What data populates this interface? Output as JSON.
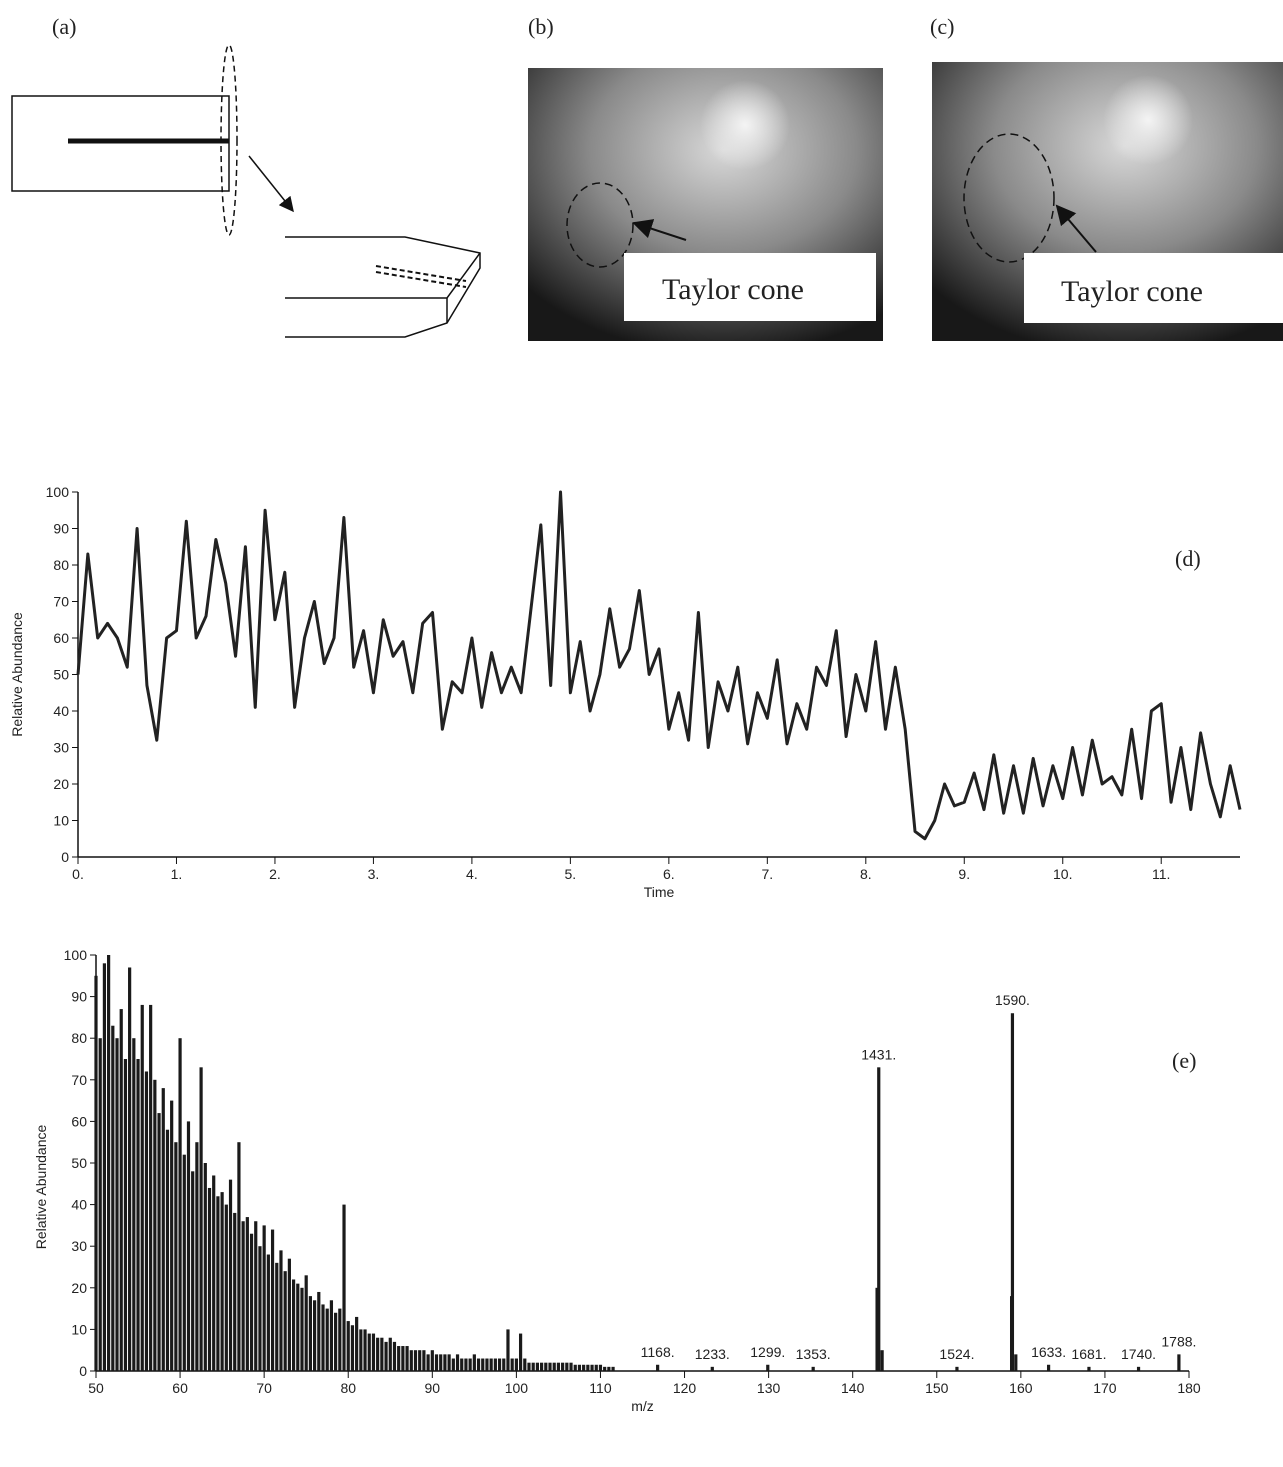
{
  "panels": {
    "a": "(a)",
    "b": "(b)",
    "c": "(c)"
  },
  "photo_labels": {
    "b": "Taylor cone",
    "c": "Taylor cone"
  },
  "chart_data": [
    {
      "type": "line",
      "annotation": "(d)",
      "x_label": "Time",
      "y_label": "Relative Abundance",
      "color": "#222222",
      "x": [
        0,
        0.1,
        0.2,
        0.3,
        0.4,
        0.5,
        0.6,
        0.7,
        0.8,
        0.9,
        1.0,
        1.1,
        1.2,
        1.3,
        1.4,
        1.5,
        1.6,
        1.7,
        1.8,
        1.9,
        2.0,
        2.1,
        2.2,
        2.3,
        2.4,
        2.5,
        2.6,
        2.7,
        2.8,
        2.9,
        3.0,
        3.1,
        3.2,
        3.3,
        3.4,
        3.5,
        3.6,
        3.7,
        3.8,
        3.9,
        4.0,
        4.1,
        4.2,
        4.3,
        4.4,
        4.5,
        4.6,
        4.7,
        4.8,
        4.9,
        5.0,
        5.1,
        5.2,
        5.3,
        5.4,
        5.5,
        5.6,
        5.7,
        5.8,
        5.9,
        6.0,
        6.1,
        6.2,
        6.3,
        6.4,
        6.5,
        6.6,
        6.7,
        6.8,
        6.9,
        7.0,
        7.1,
        7.2,
        7.3,
        7.4,
        7.5,
        7.6,
        7.7,
        7.8,
        7.9,
        8.0,
        8.1,
        8.2,
        8.3,
        8.4,
        8.5,
        8.6,
        8.7,
        8.8,
        8.9,
        9.0,
        9.1,
        9.2,
        9.3,
        9.4,
        9.5,
        9.6,
        9.7,
        9.8,
        9.9,
        10.0,
        10.1,
        10.2,
        10.3,
        10.4,
        10.5,
        10.6,
        10.7,
        10.8,
        10.9,
        11.0,
        11.1,
        11.2,
        11.3,
        11.4,
        11.5,
        11.6,
        11.7,
        11.8
      ],
      "values": [
        50,
        83,
        60,
        64,
        60,
        52,
        90,
        47,
        32,
        60,
        62,
        92,
        60,
        66,
        87,
        75,
        55,
        85,
        41,
        95,
        65,
        78,
        41,
        60,
        70,
        53,
        60,
        93,
        52,
        62,
        45,
        65,
        55,
        59,
        45,
        64,
        67,
        35,
        48,
        45,
        60,
        41,
        56,
        45,
        52,
        45,
        68,
        91,
        47,
        100,
        45,
        59,
        40,
        50,
        68,
        52,
        57,
        73,
        50,
        57,
        35,
        45,
        32,
        67,
        30,
        48,
        40,
        52,
        31,
        45,
        38,
        54,
        31,
        42,
        35,
        52,
        47,
        62,
        33,
        50,
        40,
        59,
        35,
        52,
        35,
        7,
        5,
        10,
        20,
        14,
        15,
        23,
        13,
        28,
        12,
        25,
        12,
        27,
        14,
        25,
        16,
        30,
        17,
        32,
        20,
        22,
        17,
        35,
        16,
        40,
        42,
        15,
        30,
        13,
        34,
        20,
        11,
        25,
        13
      ],
      "xlim": [
        0,
        11.8
      ],
      "ylim": [
        0,
        100
      ],
      "xticks": [
        {
          "value": 0,
          "label": "0."
        },
        {
          "value": 1,
          "label": "1."
        },
        {
          "value": 2,
          "label": "2."
        },
        {
          "value": 3,
          "label": "3."
        },
        {
          "value": 4,
          "label": "4."
        },
        {
          "value": 5,
          "label": "5."
        },
        {
          "value": 6,
          "label": "6."
        },
        {
          "value": 7,
          "label": "7."
        },
        {
          "value": 8,
          "label": "8."
        },
        {
          "value": 9,
          "label": "9."
        },
        {
          "value": 10,
          "label": "10."
        },
        {
          "value": 11,
          "label": "11."
        }
      ],
      "yticks": [
        0,
        10,
        20,
        30,
        40,
        50,
        60,
        70,
        80,
        90,
        100
      ]
    },
    {
      "type": "stem",
      "annotation": "(e)",
      "x_label": "m/z",
      "y_label": "Relative Abundance",
      "color": "#1a1a1a",
      "x": [
        50,
        50.5,
        51,
        51.5,
        52,
        52.5,
        53,
        53.5,
        54,
        54.5,
        55,
        55.5,
        56,
        56.5,
        57,
        57.5,
        58,
        58.5,
        59,
        59.5,
        60,
        60.5,
        61,
        61.5,
        62,
        62.5,
        63,
        63.5,
        64,
        64.5,
        65,
        65.5,
        66,
        66.5,
        67,
        67.5,
        68,
        68.5,
        69,
        69.5,
        70,
        70.5,
        71,
        71.5,
        72,
        72.5,
        73,
        73.5,
        74,
        74.5,
        75,
        75.5,
        76,
        76.5,
        77,
        77.5,
        78,
        78.5,
        79,
        79.5,
        80,
        80.5,
        81,
        81.5,
        82,
        82.5,
        83,
        83.5,
        84,
        84.5,
        85,
        85.5,
        86,
        86.5,
        87,
        87.5,
        88,
        88.5,
        89,
        89.5,
        90,
        90.5,
        91,
        91.5,
        92,
        92.5,
        93,
        93.5,
        94,
        94.5,
        95,
        95.5,
        96,
        96.5,
        97,
        97.5,
        98,
        98.5,
        99,
        99.5,
        100,
        100.5,
        101,
        101.5,
        102,
        102.5,
        103,
        103.5,
        104,
        104.5,
        105,
        105.5,
        106,
        106.5,
        107,
        107.5,
        108,
        108.5,
        109,
        109.5,
        110,
        110.5,
        111,
        111.5,
        116.8,
        123.3,
        129.9,
        135.3,
        142.9,
        143.1,
        143.5,
        152.4,
        158.9,
        159.0,
        159.4,
        163.3,
        168.1,
        174.0,
        178.8
      ],
      "values": [
        95,
        80,
        98,
        100,
        83,
        80,
        87,
        75,
        97,
        80,
        75,
        88,
        72,
        88,
        70,
        62,
        68,
        58,
        65,
        55,
        80,
        52,
        60,
        48,
        55,
        73,
        50,
        44,
        47,
        42,
        43,
        40,
        46,
        38,
        55,
        36,
        37,
        33,
        36,
        30,
        35,
        28,
        34,
        26,
        29,
        24,
        27,
        22,
        21,
        20,
        23,
        18,
        17,
        19,
        16,
        15,
        17,
        14,
        15,
        40,
        12,
        11,
        13,
        10,
        10,
        9,
        9,
        8,
        8,
        7,
        8,
        7,
        6,
        6,
        6,
        5,
        5,
        5,
        5,
        4,
        5,
        4,
        4,
        4,
        4,
        3,
        4,
        3,
        3,
        3,
        4,
        3,
        3,
        3,
        3,
        3,
        3,
        3,
        10,
        3,
        3,
        9,
        3,
        2,
        2,
        2,
        2,
        2,
        2,
        2,
        2,
        2,
        2,
        2,
        1.5,
        1.5,
        1.5,
        1.5,
        1.5,
        1.5,
        1.5,
        1,
        1,
        1,
        1.5,
        1,
        1.5,
        1,
        20,
        73,
        5,
        1,
        18,
        86,
        4,
        1.5,
        1,
        1,
        4
      ],
      "peak_labels": [
        {
          "x": 116.8,
          "y": 1.5,
          "label": "1168."
        },
        {
          "x": 123.3,
          "y": 1,
          "label": "1233."
        },
        {
          "x": 129.9,
          "y": 1.5,
          "label": "1299."
        },
        {
          "x": 135.3,
          "y": 1,
          "label": "1353."
        },
        {
          "x": 143.1,
          "y": 73,
          "label": "1431."
        },
        {
          "x": 152.4,
          "y": 1,
          "label": "1524."
        },
        {
          "x": 159.0,
          "y": 86,
          "label": "1590."
        },
        {
          "x": 163.3,
          "y": 1.5,
          "label": "1633."
        },
        {
          "x": 168.1,
          "y": 1,
          "label": "1681."
        },
        {
          "x": 174.0,
          "y": 1,
          "label": "1740."
        },
        {
          "x": 178.8,
          "y": 4,
          "label": "1788."
        }
      ],
      "xlim": [
        50,
        180
      ],
      "ylim": [
        0,
        100
      ],
      "xticks": [
        50,
        60,
        70,
        80,
        90,
        100,
        110,
        120,
        130,
        140,
        150,
        160,
        170,
        180
      ],
      "yticks": [
        0,
        10,
        20,
        30,
        40,
        50,
        60,
        70,
        80,
        90,
        100
      ]
    }
  ]
}
